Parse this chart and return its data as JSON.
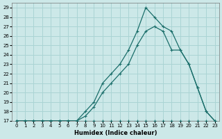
{
  "xlabel": "Humidex (Indice chaleur)",
  "bg_color": "#cce8e8",
  "line_color": "#1a6e6a",
  "grid_color": "#aad4d4",
  "xlim": [
    -0.5,
    23.5
  ],
  "ylim": [
    17,
    29.5
  ],
  "xticks": [
    0,
    1,
    2,
    3,
    4,
    5,
    6,
    7,
    8,
    9,
    10,
    11,
    12,
    13,
    14,
    15,
    16,
    17,
    18,
    19,
    20,
    21,
    22,
    23
  ],
  "yticks": [
    17,
    18,
    19,
    20,
    21,
    22,
    23,
    24,
    25,
    26,
    27,
    28,
    29
  ],
  "line1_x": [
    0,
    1,
    2,
    3,
    4,
    5,
    6,
    7,
    8,
    9,
    10,
    11,
    12,
    13,
    14,
    15,
    16,
    17,
    18,
    19,
    20,
    21,
    22,
    23
  ],
  "line1_y": [
    17,
    17,
    17,
    17,
    17,
    17,
    17,
    17,
    17,
    17,
    17,
    17,
    17,
    17,
    17,
    17,
    17,
    17,
    17,
    17,
    17,
    17,
    17,
    17
  ],
  "line2_x": [
    0,
    1,
    2,
    3,
    4,
    5,
    6,
    7,
    8,
    9,
    10,
    11,
    12,
    13,
    14,
    15,
    16,
    17,
    18,
    19,
    20,
    21,
    22,
    23
  ],
  "line2_y": [
    17,
    17,
    17,
    17,
    17,
    17,
    17,
    17,
    17.5,
    18.5,
    20,
    21,
    22,
    23,
    25,
    26.5,
    27,
    26.5,
    24.5,
    24.5,
    23,
    20.5,
    18,
    17
  ],
  "line3_x": [
    0,
    1,
    2,
    3,
    4,
    5,
    6,
    7,
    8,
    9,
    10,
    11,
    12,
    13,
    14,
    15,
    16,
    17,
    18,
    19,
    20,
    21,
    22,
    23
  ],
  "line3_y": [
    17,
    17,
    17,
    17,
    17,
    17,
    17,
    17,
    18,
    19,
    21,
    22,
    23,
    24.5,
    26.5,
    29,
    28,
    27,
    26.5,
    24.5,
    23,
    20.5,
    18,
    17
  ]
}
